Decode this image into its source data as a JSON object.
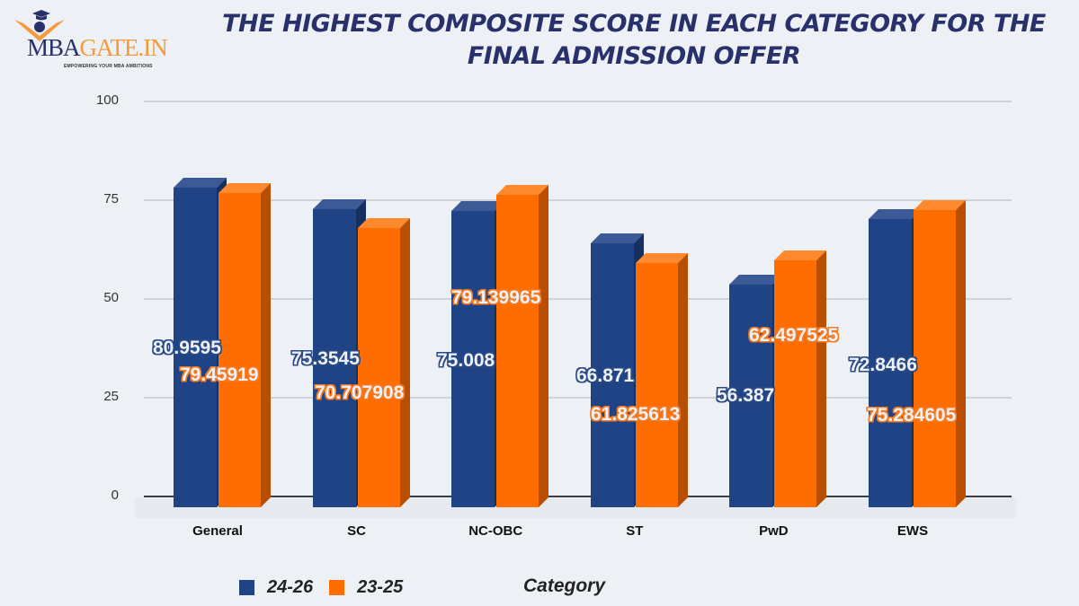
{
  "logo": {
    "mba": "MBA",
    "gate": "GATE.IN",
    "tagline": "EMPOWERING YOUR MBA AMBITIONS"
  },
  "colors": {
    "series_24_26": "#1f4385",
    "series_23_25": "#ff6d00",
    "title": "#28316b",
    "background": "#edf0f4"
  },
  "chart_data": {
    "type": "bar",
    "title": "THE HIGHEST COMPOSITE SCORE IN EACH CATEGORY FOR THE FINAL ADMISSION OFFER",
    "xlabel": "Category",
    "ylabel": "",
    "ylim": [
      0,
      100
    ],
    "yticks": [
      0,
      25,
      50,
      75,
      100
    ],
    "grid": true,
    "legend_position": "bottom",
    "style": "3d-clustered-column",
    "categories": [
      "General",
      "SC",
      "NC-OBC",
      "ST",
      "PwD",
      "EWS"
    ],
    "series": [
      {
        "name": "24-26",
        "color": "#1f4385",
        "values": [
          80.9595,
          75.3545,
          75.008,
          66.871,
          56.387,
          72.8466
        ],
        "labels": [
          "80.9595",
          "75.3545",
          "75.008",
          "66.871",
          "56.387",
          "72.8466"
        ]
      },
      {
        "name": "23-25",
        "color": "#ff6d00",
        "values": [
          79.45919,
          70.707908,
          79.139965,
          61.825613,
          62.497525,
          75.284605
        ],
        "labels": [
          "79.45919",
          "70.707908",
          "79.139965",
          "61.825613",
          "62.497525",
          "75.284605"
        ]
      }
    ]
  }
}
